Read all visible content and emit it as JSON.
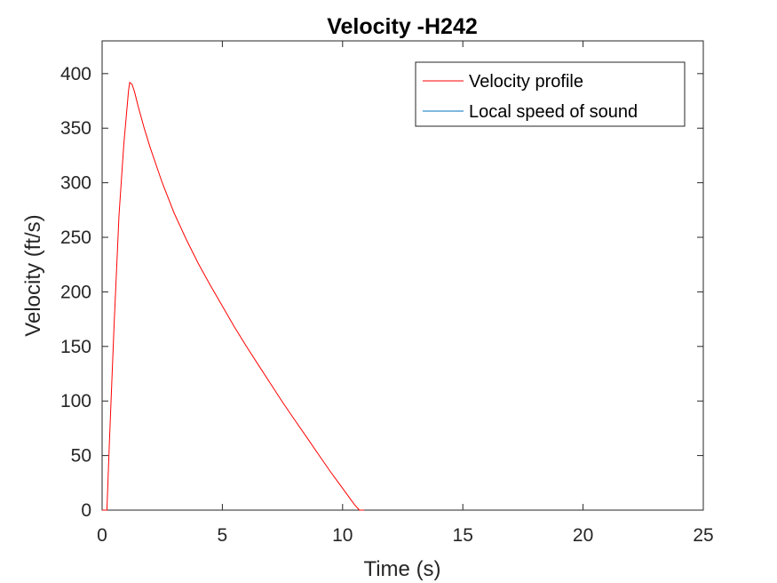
{
  "chart_data": {
    "type": "line",
    "title": "Velocity -H242",
    "xlabel": "Time (s)",
    "ylabel": "Velocity (ft/s)",
    "xlim": [
      0,
      25
    ],
    "ylim": [
      0,
      430
    ],
    "xticks": [
      0,
      5,
      10,
      15,
      20,
      25
    ],
    "yticks": [
      0,
      50,
      100,
      150,
      200,
      250,
      300,
      350,
      400
    ],
    "grid": false,
    "box": true,
    "legend_position": "top-right",
    "series": [
      {
        "name": "Velocity profile",
        "color": "#ff0000",
        "x": [
          0,
          0.2,
          0.3,
          0.5,
          0.7,
          0.9,
          1.0,
          1.1,
          1.15,
          1.25,
          1.35,
          1.5,
          1.75,
          2.0,
          2.5,
          3.0,
          3.5,
          4.0,
          4.5,
          5.0,
          5.5,
          6.0,
          6.5,
          7.0,
          7.5,
          8.0,
          8.5,
          9.0,
          9.5,
          10.0,
          10.5,
          10.7,
          10.8,
          10.9
        ],
        "y": [
          0,
          0,
          60,
          170,
          270,
          335,
          360,
          385,
          392,
          390,
          383,
          370,
          350,
          332,
          300,
          272,
          248,
          226,
          206,
          187,
          168,
          150,
          133,
          116,
          99,
          83,
          67,
          51,
          35,
          20,
          5,
          0,
          0,
          0
        ]
      },
      {
        "name": "Local speed of sound",
        "color": "#0072bd",
        "x": [],
        "y": []
      }
    ]
  }
}
